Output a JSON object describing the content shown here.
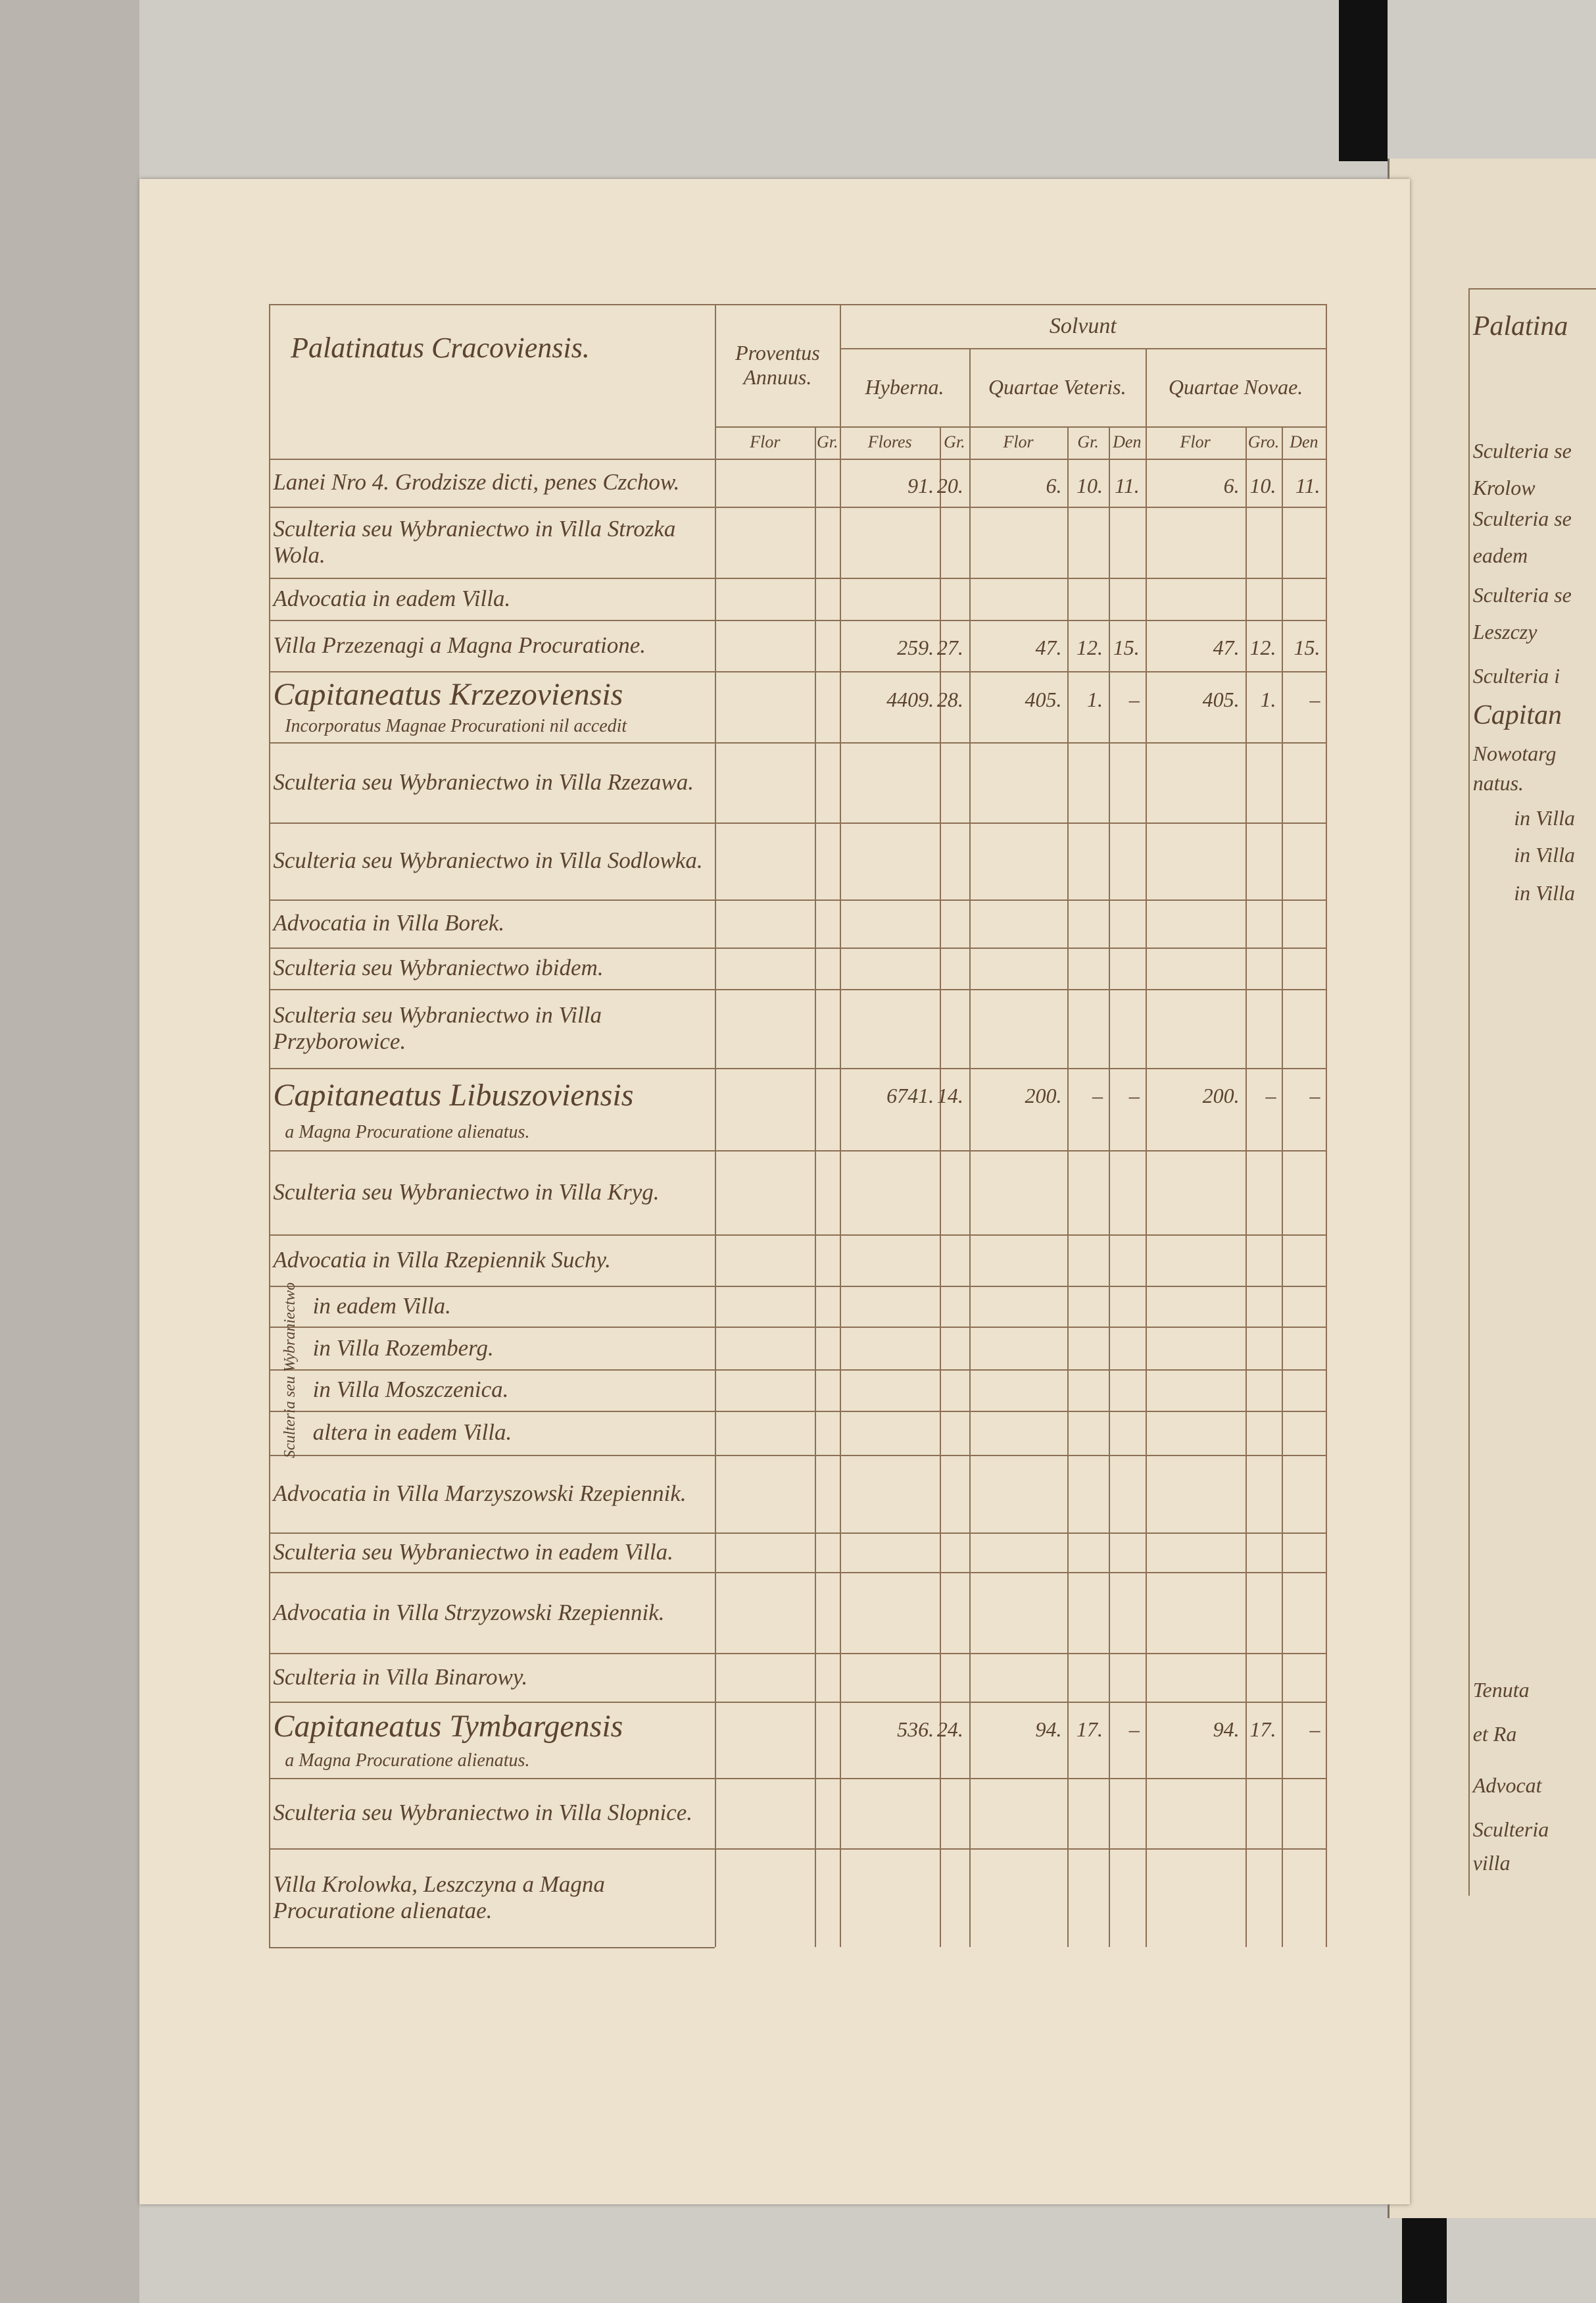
{
  "header": {
    "title": "Palatinatus Cracoviensis.",
    "solvunt": "Solvunt",
    "groups": [
      "Proventus Annuus.",
      "Hyberna.",
      "Quartae Veteris.",
      "Quartae Novae."
    ],
    "subheads": [
      "Flor",
      "Gr.",
      "Flores",
      "Gr.",
      "Flor",
      "Gr.",
      "Den",
      "Flor",
      "Gro.",
      "Den"
    ]
  },
  "table": {
    "rows": [
      {
        "name": "Lanei Nro 4. Grodzisze dicti, penes Czchow.",
        "cells": [
          null,
          null,
          "91.",
          "20.",
          "6.",
          "10.",
          "11.",
          "6.",
          "10.",
          "11."
        ]
      },
      {
        "name": "Sculteria seu Wybraniectwo in Villa Strozka Wola.",
        "cells": [
          null,
          null,
          null,
          null,
          null,
          null,
          null,
          null,
          null,
          null
        ]
      },
      {
        "name": "Advocatia in eadem Villa.",
        "cells": [
          null,
          null,
          null,
          null,
          null,
          null,
          null,
          null,
          null,
          null
        ]
      },
      {
        "name": "Villa Przezenagi a Magna Procuratione.",
        "cells": [
          null,
          null,
          "259.",
          "27.",
          "47.",
          "12.",
          "15.",
          "47.",
          "12.",
          "15."
        ]
      },
      {
        "name": "Capitaneatus Krzezoviensis",
        "note": "Incorporatus Magnae Procurationi nil accedit",
        "big": true,
        "cells": [
          null,
          null,
          "4409.",
          "28.",
          "405.",
          "1.",
          "–",
          "405.",
          "1.",
          "–"
        ]
      },
      {
        "name": "Sculteria seu Wybraniectwo in Villa Rzezawa.",
        "cells": [
          null,
          null,
          null,
          null,
          null,
          null,
          null,
          null,
          null,
          null
        ]
      },
      {
        "name": "Sculteria seu Wybraniectwo in Villa Sodlowka.",
        "cells": [
          null,
          null,
          null,
          null,
          null,
          null,
          null,
          null,
          null,
          null
        ]
      },
      {
        "name": "Advocatia in Villa Borek.",
        "cells": [
          null,
          null,
          null,
          null,
          null,
          null,
          null,
          null,
          null,
          null
        ]
      },
      {
        "name": "Sculteria seu Wybraniectwo ibidem.",
        "cells": [
          null,
          null,
          null,
          null,
          null,
          null,
          null,
          null,
          null,
          null
        ]
      },
      {
        "name": "Sculteria seu Wybraniectwo in Villa Przyborowice.",
        "cells": [
          null,
          null,
          null,
          null,
          null,
          null,
          null,
          null,
          null,
          null
        ]
      },
      {
        "name": "Capitaneatus Libuszoviensis",
        "note": "a Magna Procuratione alienatus.",
        "big": true,
        "cells": [
          null,
          null,
          "6741.",
          "14.",
          "200.",
          "–",
          "–",
          "200.",
          "–",
          "–"
        ]
      },
      {
        "name": "Sculteria seu Wybraniectwo in Villa Kryg.",
        "cells": [
          null,
          null,
          null,
          null,
          null,
          null,
          null,
          null,
          null,
          null
        ]
      },
      {
        "name": "Advocatia in Villa Rzepiennik Suchy.",
        "cells": [
          null,
          null,
          null,
          null,
          null,
          null,
          null,
          null,
          null,
          null
        ]
      },
      {
        "name": "in eadem Villa.",
        "indent": true,
        "cells": [
          null,
          null,
          null,
          null,
          null,
          null,
          null,
          null,
          null,
          null
        ]
      },
      {
        "name": "in Villa Rozemberg.",
        "indent": true,
        "cells": [
          null,
          null,
          null,
          null,
          null,
          null,
          null,
          null,
          null,
          null
        ]
      },
      {
        "name": "in Villa Moszczenica.",
        "indent": true,
        "cells": [
          null,
          null,
          null,
          null,
          null,
          null,
          null,
          null,
          null,
          null
        ]
      },
      {
        "name": "altera in eadem Villa.",
        "indent": true,
        "cells": [
          null,
          null,
          null,
          null,
          null,
          null,
          null,
          null,
          null,
          null
        ]
      },
      {
        "name": "Advocatia in Villa Marzyszowski Rzepiennik.",
        "cells": [
          null,
          null,
          null,
          null,
          null,
          null,
          null,
          null,
          null,
          null
        ]
      },
      {
        "name": "Sculteria seu Wybraniectwo in eadem Villa.",
        "cells": [
          null,
          null,
          null,
          null,
          null,
          null,
          null,
          null,
          null,
          null
        ]
      },
      {
        "name": "Advocatia in Villa Strzyzowski Rzepiennik.",
        "cells": [
          null,
          null,
          null,
          null,
          null,
          null,
          null,
          null,
          null,
          null
        ]
      },
      {
        "name": "Sculteria in Villa Binarowy.",
        "cells": [
          null,
          null,
          null,
          null,
          null,
          null,
          null,
          null,
          null,
          null
        ]
      },
      {
        "name": "Capitaneatus Tymbargensis",
        "note": "a Magna Procuratione alienatus.",
        "big": true,
        "cells": [
          null,
          null,
          "536.",
          "24.",
          "94.",
          "17.",
          "–",
          "94.",
          "17.",
          "–"
        ]
      },
      {
        "name": "Sculteria seu Wybraniectwo in Villa Slopnice.",
        "cells": [
          null,
          null,
          null,
          null,
          null,
          null,
          null,
          null,
          null,
          null
        ]
      },
      {
        "name": "Villa Krolowka, Leszczyna a Magna Procuratione alienatae.",
        "cells": [
          null,
          null,
          null,
          null,
          null,
          null,
          null,
          null,
          null,
          null
        ]
      }
    ],
    "bracket": "Sculteria seu Wybraniectwo"
  },
  "right_page": {
    "fragments": [
      "Palatina",
      "Sculteria se",
      "Krolow",
      "Sculteria se",
      "eadem",
      "Sculteria se",
      "Leszczy",
      "Sculteria i",
      "Capitan",
      "Nowotarg",
      "natus.",
      "in Villa",
      "in Villa",
      "in Villa",
      "Tenuta",
      "et Ra",
      "Advocat",
      "Sculteria",
      "villa"
    ]
  }
}
